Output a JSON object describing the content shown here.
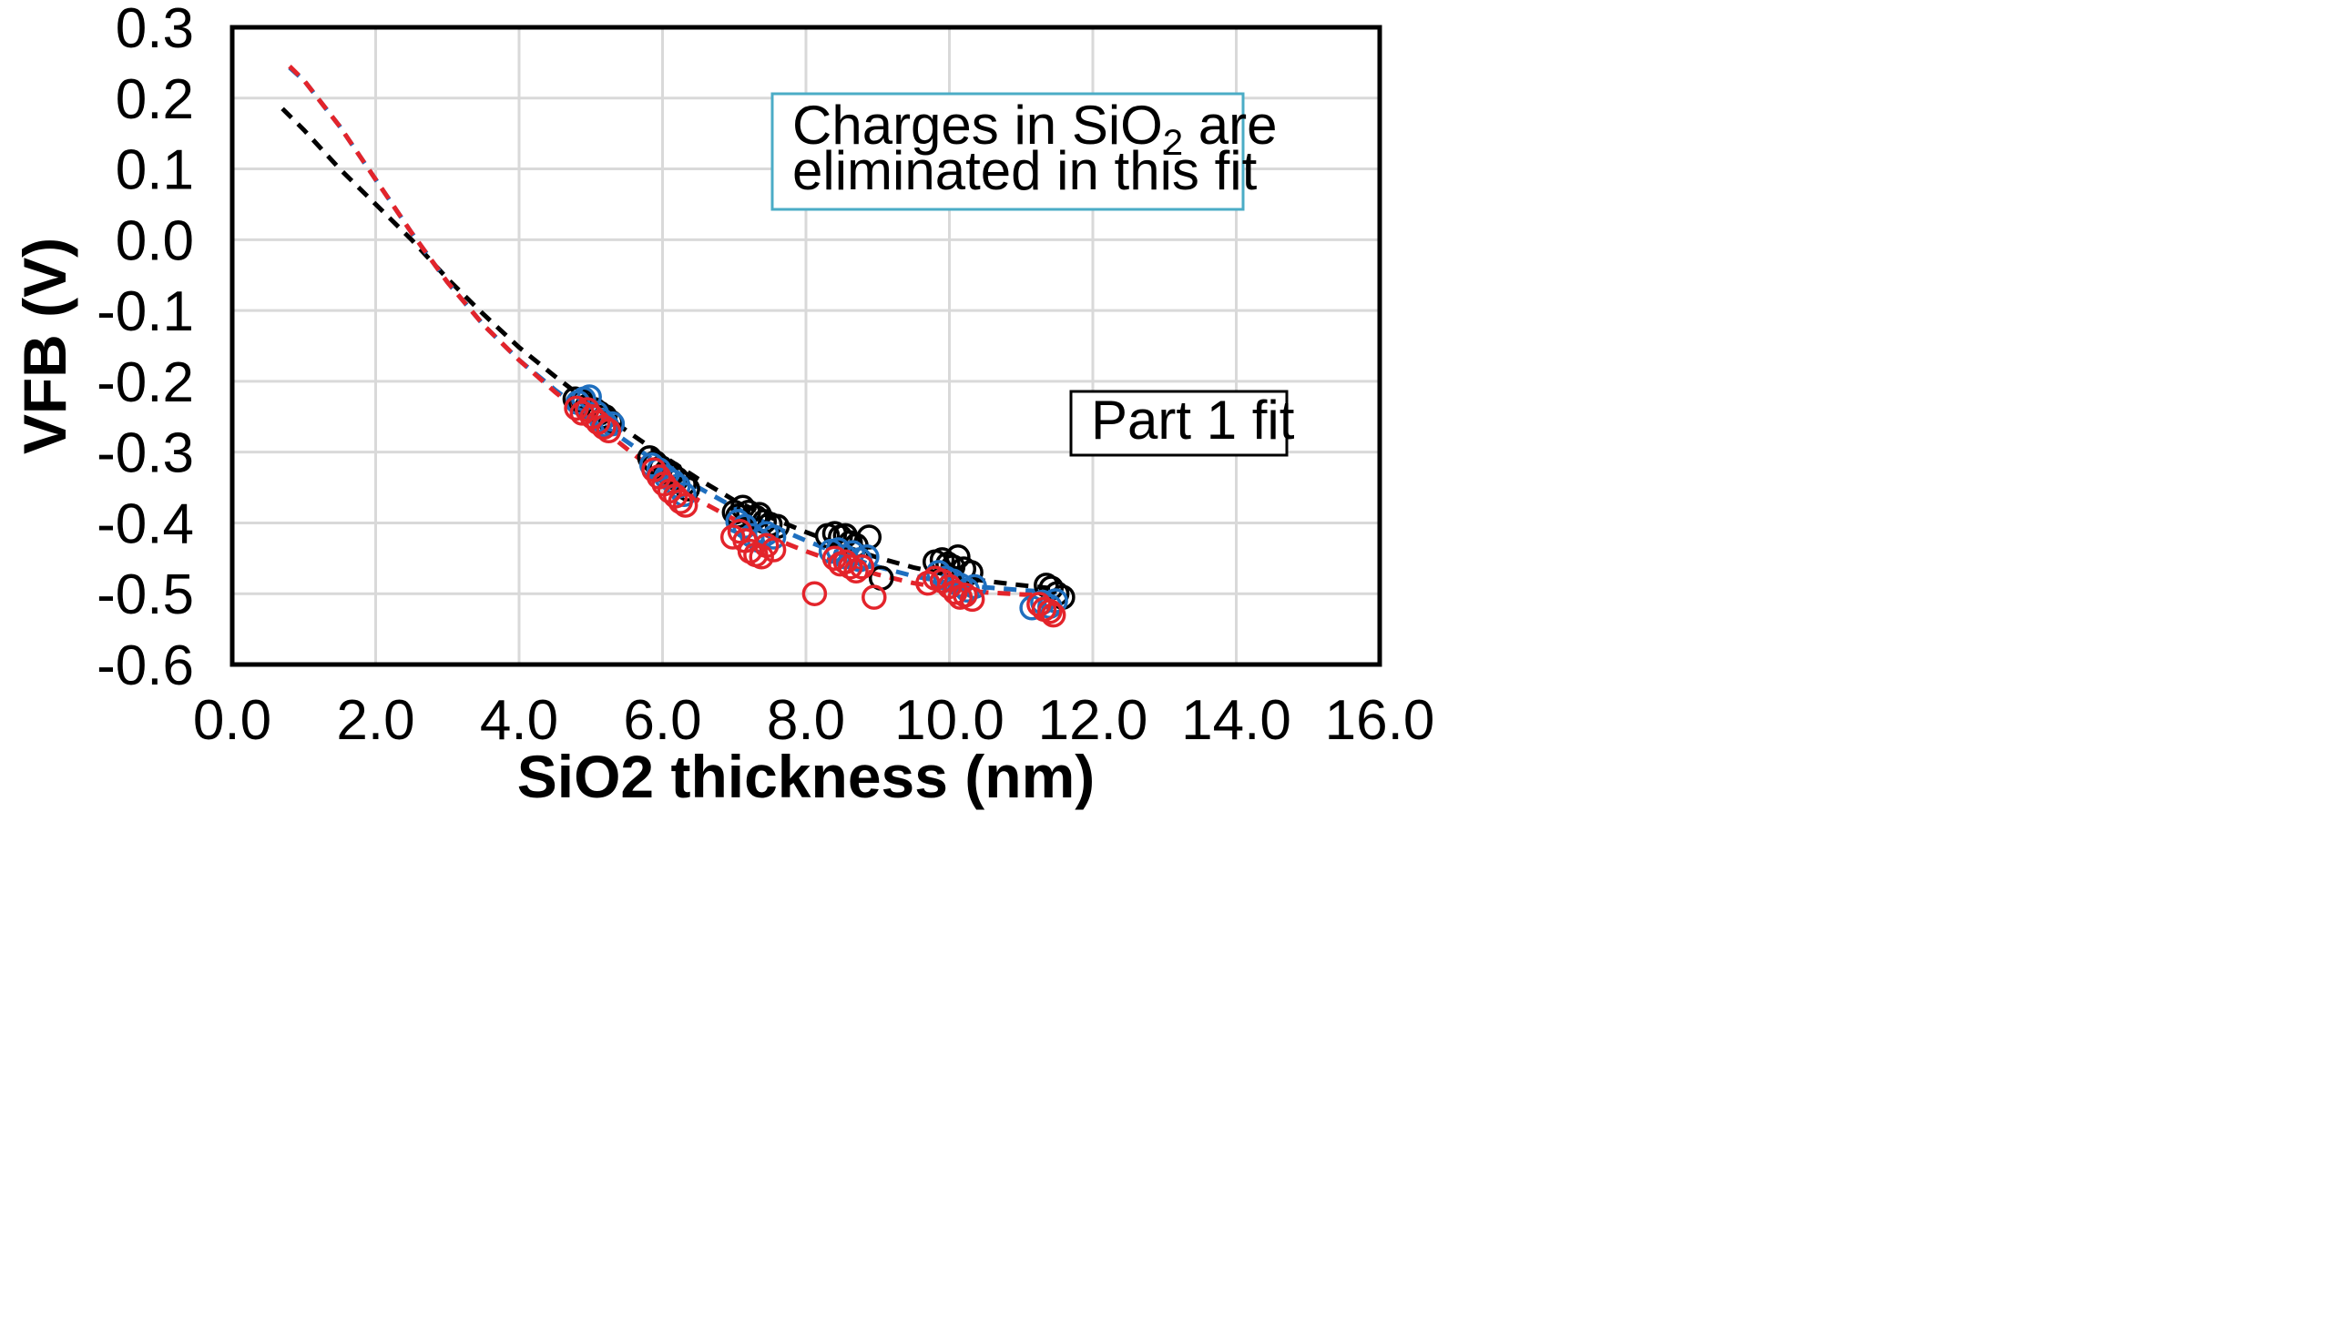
{
  "chart_data": {
    "type": "scatter",
    "title": "",
    "xlabel": "SiO2 thickness (nm)",
    "ylabel": "VFB (V)",
    "xlim": [
      0,
      16
    ],
    "ylim": [
      -0.6,
      0.3
    ],
    "xticks": [
      0,
      2,
      4,
      6,
      8,
      10,
      12,
      14,
      16
    ],
    "xtick_labels": [
      "0.0",
      "2.0",
      "4.0",
      "6.0",
      "8.0",
      "10.0",
      "12.0",
      "14.0",
      "16.0"
    ],
    "yticks": [
      0.3,
      0.2,
      0.1,
      0.0,
      -0.1,
      -0.2,
      -0.3,
      -0.4,
      -0.5,
      -0.6
    ],
    "ytick_labels": [
      "0.3",
      "0.2",
      "0.1",
      "0.0",
      "-0.1",
      "-0.2",
      "-0.3",
      "-0.4",
      "-0.5",
      "-0.6"
    ],
    "grid": true,
    "legend": "none",
    "annotations": [
      {
        "line1_prefix": "Charges  in SiO",
        "line1_sub": "2",
        "line1_suffix": " are",
        "line2": "eliminated in this fit",
        "border_color": "#4bacc6"
      },
      {
        "text": "Part  1 fit",
        "border_color": "#000000"
      }
    ],
    "series": [
      {
        "color": "#000000",
        "marker": "open-circle",
        "points": [
          [
            4.78,
            -0.225
          ],
          [
            4.85,
            -0.23
          ],
          [
            4.9,
            -0.228
          ],
          [
            4.95,
            -0.235
          ],
          [
            5.05,
            -0.24
          ],
          [
            5.12,
            -0.245
          ],
          [
            5.2,
            -0.25
          ],
          [
            5.28,
            -0.258
          ],
          [
            5.82,
            -0.308
          ],
          [
            5.9,
            -0.315
          ],
          [
            5.98,
            -0.322
          ],
          [
            6.05,
            -0.328
          ],
          [
            6.12,
            -0.33
          ],
          [
            6.2,
            -0.338
          ],
          [
            6.3,
            -0.345
          ],
          [
            6.35,
            -0.352
          ],
          [
            7.0,
            -0.385
          ],
          [
            7.05,
            -0.39
          ],
          [
            7.12,
            -0.378
          ],
          [
            7.2,
            -0.385
          ],
          [
            7.3,
            -0.392
          ],
          [
            7.35,
            -0.388
          ],
          [
            7.42,
            -0.398
          ],
          [
            7.5,
            -0.402
          ],
          [
            7.6,
            -0.405
          ],
          [
            8.3,
            -0.418
          ],
          [
            8.4,
            -0.415
          ],
          [
            8.48,
            -0.42
          ],
          [
            8.55,
            -0.418
          ],
          [
            8.62,
            -0.428
          ],
          [
            8.7,
            -0.432
          ],
          [
            8.88,
            -0.42
          ],
          [
            9.05,
            -0.478
          ],
          [
            9.8,
            -0.455
          ],
          [
            9.9,
            -0.452
          ],
          [
            9.98,
            -0.458
          ],
          [
            10.05,
            -0.462
          ],
          [
            10.12,
            -0.448
          ],
          [
            10.2,
            -0.465
          ],
          [
            10.3,
            -0.47
          ],
          [
            11.35,
            -0.488
          ],
          [
            11.42,
            -0.492
          ],
          [
            11.5,
            -0.5
          ],
          [
            11.58,
            -0.505
          ]
        ]
      },
      {
        "color": "#1f6fbf",
        "marker": "open-circle",
        "points": [
          [
            4.82,
            -0.23
          ],
          [
            4.9,
            -0.225
          ],
          [
            4.98,
            -0.222
          ],
          [
            5.08,
            -0.245
          ],
          [
            5.15,
            -0.255
          ],
          [
            5.22,
            -0.262
          ],
          [
            5.3,
            -0.26
          ],
          [
            5.85,
            -0.318
          ],
          [
            5.95,
            -0.325
          ],
          [
            6.05,
            -0.335
          ],
          [
            6.15,
            -0.342
          ],
          [
            6.22,
            -0.348
          ],
          [
            6.3,
            -0.36
          ],
          [
            7.05,
            -0.398
          ],
          [
            7.15,
            -0.405
          ],
          [
            7.25,
            -0.418
          ],
          [
            7.35,
            -0.425
          ],
          [
            7.45,
            -0.415
          ],
          [
            7.55,
            -0.42
          ],
          [
            8.35,
            -0.44
          ],
          [
            8.45,
            -0.438
          ],
          [
            8.55,
            -0.448
          ],
          [
            8.65,
            -0.442
          ],
          [
            8.75,
            -0.452
          ],
          [
            8.85,
            -0.448
          ],
          [
            9.85,
            -0.47
          ],
          [
            9.95,
            -0.478
          ],
          [
            10.05,
            -0.482
          ],
          [
            10.15,
            -0.488
          ],
          [
            10.25,
            -0.495
          ],
          [
            10.35,
            -0.49
          ],
          [
            11.15,
            -0.52
          ],
          [
            11.3,
            -0.512
          ],
          [
            11.4,
            -0.518
          ],
          [
            11.48,
            -0.51
          ]
        ]
      },
      {
        "color": "#e3242b",
        "marker": "open-circle",
        "points": [
          [
            4.8,
            -0.238
          ],
          [
            4.88,
            -0.245
          ],
          [
            4.95,
            -0.24
          ],
          [
            5.02,
            -0.25
          ],
          [
            5.1,
            -0.258
          ],
          [
            5.18,
            -0.265
          ],
          [
            5.25,
            -0.27
          ],
          [
            5.88,
            -0.325
          ],
          [
            5.95,
            -0.335
          ],
          [
            6.02,
            -0.345
          ],
          [
            6.1,
            -0.355
          ],
          [
            6.18,
            -0.362
          ],
          [
            6.25,
            -0.37
          ],
          [
            6.32,
            -0.375
          ],
          [
            6.98,
            -0.42
          ],
          [
            7.08,
            -0.412
          ],
          [
            7.15,
            -0.425
          ],
          [
            7.22,
            -0.44
          ],
          [
            7.3,
            -0.445
          ],
          [
            7.38,
            -0.448
          ],
          [
            7.45,
            -0.432
          ],
          [
            7.55,
            -0.438
          ],
          [
            8.12,
            -0.5
          ],
          [
            8.4,
            -0.45
          ],
          [
            8.48,
            -0.458
          ],
          [
            8.55,
            -0.455
          ],
          [
            8.62,
            -0.462
          ],
          [
            8.7,
            -0.468
          ],
          [
            8.78,
            -0.462
          ],
          [
            8.95,
            -0.505
          ],
          [
            9.7,
            -0.485
          ],
          [
            9.8,
            -0.478
          ],
          [
            9.9,
            -0.482
          ],
          [
            10.0,
            -0.49
          ],
          [
            10.08,
            -0.498
          ],
          [
            10.15,
            -0.505
          ],
          [
            10.22,
            -0.502
          ],
          [
            10.32,
            -0.508
          ],
          [
            11.25,
            -0.515
          ],
          [
            11.32,
            -0.522
          ],
          [
            11.4,
            -0.525
          ],
          [
            11.45,
            -0.53
          ]
        ]
      }
    ],
    "fits": [
      {
        "color": "#000000",
        "x": [
          0.7,
          1.0,
          1.5,
          2.0,
          2.5,
          3.0,
          3.5,
          4.0,
          4.5,
          5.0,
          5.5,
          6.0,
          6.5,
          7.0,
          7.5,
          8.0,
          8.5,
          9.0,
          9.5,
          10.0,
          10.5,
          11.0,
          11.5
        ],
        "y": [
          0.185,
          0.155,
          0.1,
          0.05,
          0.0,
          -0.055,
          -0.105,
          -0.152,
          -0.193,
          -0.232,
          -0.27,
          -0.305,
          -0.338,
          -0.368,
          -0.392,
          -0.413,
          -0.432,
          -0.449,
          -0.463,
          -0.474,
          -0.482,
          -0.488,
          -0.493
        ]
      },
      {
        "color": "#1f6fbf",
        "x": [
          0.8,
          1.0,
          1.5,
          2.0,
          2.5,
          3.0,
          3.5,
          4.0,
          4.5,
          5.0,
          5.5,
          6.0,
          6.5,
          7.0,
          7.5,
          8.0,
          8.5,
          9.0,
          9.5,
          10.0,
          10.5,
          11.0,
          11.5
        ],
        "y": [
          0.243,
          0.225,
          0.16,
          0.085,
          0.01,
          -0.06,
          -0.12,
          -0.17,
          -0.212,
          -0.25,
          -0.285,
          -0.32,
          -0.35,
          -0.378,
          -0.403,
          -0.425,
          -0.445,
          -0.462,
          -0.475,
          -0.485,
          -0.491,
          -0.495,
          -0.498
        ]
      },
      {
        "color": "#e3242b",
        "x": [
          0.8,
          1.0,
          1.5,
          2.0,
          2.5,
          3.0,
          3.5,
          4.0,
          4.5,
          5.0,
          5.5,
          6.0,
          6.5,
          7.0,
          7.5,
          8.0,
          8.5,
          9.0,
          9.5,
          10.0,
          10.5,
          11.0,
          11.5
        ],
        "y": [
          0.245,
          0.225,
          0.16,
          0.085,
          0.01,
          -0.06,
          -0.12,
          -0.17,
          -0.215,
          -0.255,
          -0.295,
          -0.335,
          -0.368,
          -0.395,
          -0.42,
          -0.44,
          -0.458,
          -0.473,
          -0.485,
          -0.493,
          -0.498,
          -0.501,
          -0.503
        ]
      }
    ]
  }
}
